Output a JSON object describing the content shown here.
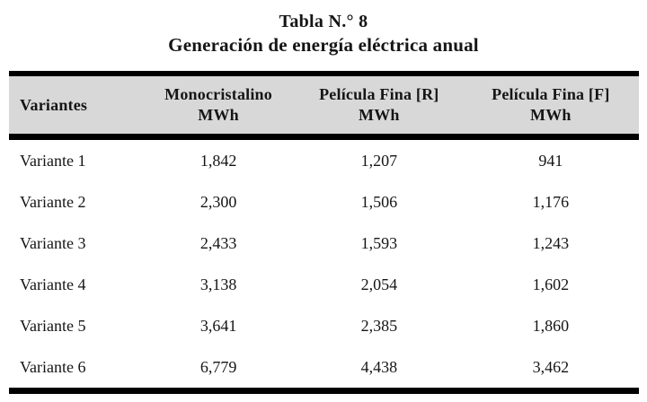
{
  "caption": {
    "line1": "Tabla N.° 8",
    "line2": "Generación de energía eléctrica anual"
  },
  "table": {
    "columns": [
      {
        "label": "Variantes",
        "unit": ""
      },
      {
        "label": "Monocristalino",
        "unit": "MWh"
      },
      {
        "label": "Película Fina [R]",
        "unit": "MWh"
      },
      {
        "label": "Película Fina [F]",
        "unit": "MWh"
      }
    ],
    "rows": [
      {
        "variant": "Variante 1",
        "values": [
          "1,842",
          "1,207",
          "941"
        ]
      },
      {
        "variant": "Variante 2",
        "values": [
          "2,300",
          "1,506",
          "1,176"
        ]
      },
      {
        "variant": "Variante 3",
        "values": [
          "2,433",
          "1,593",
          "1,243"
        ]
      },
      {
        "variant": "Variante 4",
        "values": [
          "3,138",
          "2,054",
          "1,602"
        ]
      },
      {
        "variant": "Variante 5",
        "values": [
          "3,641",
          "2,385",
          "1,860"
        ]
      },
      {
        "variant": "Variante 6",
        "values": [
          "6,779",
          "4,438",
          "3,462"
        ]
      }
    ]
  },
  "colors": {
    "header_bg": "#d8d8d8",
    "rule": "#000000",
    "text": "#151515"
  }
}
